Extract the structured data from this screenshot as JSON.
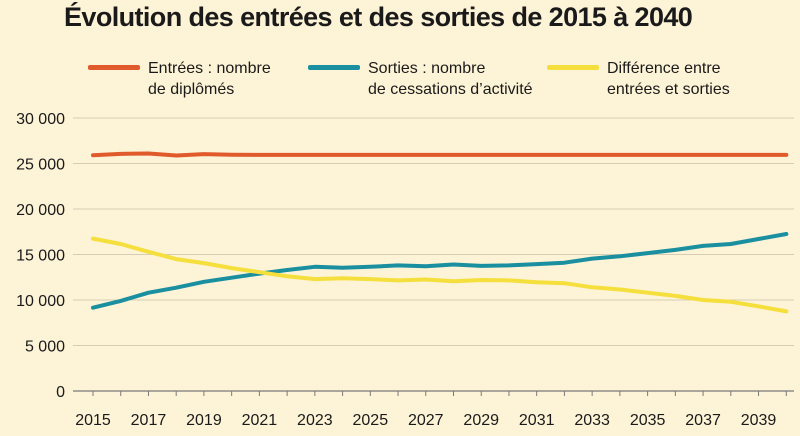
{
  "chart_data": {
    "type": "line",
    "title": "Évolution des entrées et des sorties de 2015 à 2040",
    "x": [
      2015,
      2016,
      2017,
      2018,
      2019,
      2020,
      2021,
      2022,
      2023,
      2024,
      2025,
      2026,
      2027,
      2028,
      2029,
      2030,
      2031,
      2032,
      2033,
      2034,
      2035,
      2036,
      2037,
      2038,
      2039,
      2040
    ],
    "xticks": [
      "2015",
      "2017",
      "2019",
      "2021",
      "2023",
      "2025",
      "2027",
      "2029",
      "2031",
      "2033",
      "2035",
      "2037",
      "2039"
    ],
    "ylim": [
      0,
      30000
    ],
    "yticks": [
      {
        "value": 0,
        "label": "0"
      },
      {
        "value": 5000,
        "label": "5 000"
      },
      {
        "value": 10000,
        "label": "10 000"
      },
      {
        "value": 15000,
        "label": "15 000"
      },
      {
        "value": 20000,
        "label": "20 000"
      },
      {
        "value": 25000,
        "label": "25 000"
      },
      {
        "value": 30000,
        "label": "30 000"
      }
    ],
    "grid": true,
    "legend_position": "top",
    "series": [
      {
        "name": "Entrées : nombre de diplômés",
        "label_lines": [
          "Entrées : nombre",
          "de diplômés"
        ],
        "color": "#e05a2b",
        "values": [
          25900,
          26050,
          26100,
          25880,
          26030,
          25970,
          25950,
          25950,
          25950,
          25950,
          25950,
          25950,
          25950,
          25950,
          25950,
          25950,
          25950,
          25950,
          25950,
          25950,
          25950,
          25950,
          25950,
          25950,
          25950,
          25950
        ]
      },
      {
        "name": "Sorties : nombre de cessations d'activité",
        "label_lines": [
          "Sorties : nombre",
          "de cessations d’activité"
        ],
        "color": "#1a8fa0",
        "values": [
          9150,
          9900,
          10800,
          11350,
          12000,
          12450,
          12900,
          13300,
          13650,
          13550,
          13650,
          13800,
          13700,
          13900,
          13750,
          13800,
          13950,
          14100,
          14550,
          14800,
          15150,
          15500,
          15950,
          16150,
          16700,
          17250
        ]
      },
      {
        "name": "Différence entre entrées et sorties",
        "label_lines": [
          "Différence entre",
          "entrées et sorties"
        ],
        "color": "#f5df3c",
        "values": [
          16750,
          16150,
          15300,
          14500,
          14050,
          13500,
          13050,
          12600,
          12300,
          12400,
          12300,
          12150,
          12250,
          12050,
          12200,
          12150,
          11950,
          11850,
          11400,
          11150,
          10800,
          10450,
          10000,
          9800,
          9300,
          8750
        ]
      }
    ]
  }
}
